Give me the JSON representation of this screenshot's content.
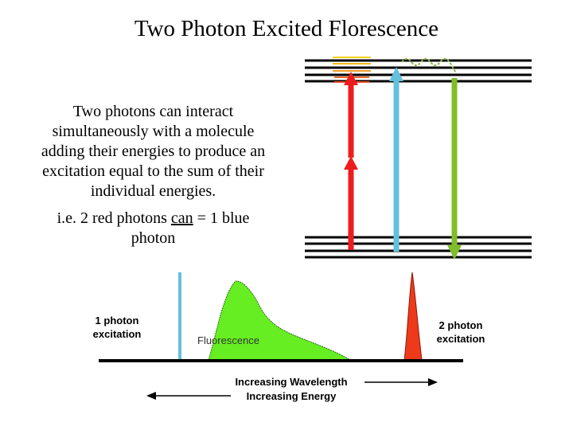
{
  "title": "Two Photon Excited Florescence",
  "body": {
    "line1": "Two photons can interact",
    "line2": "simultaneously with a molecule",
    "line3": "adding their energies to produce an",
    "line4": "excitation equal to the sum of their",
    "line5": "individual energies."
  },
  "example": {
    "prefix": "i.e. 2 red photons ",
    "underlined": "can",
    "suffix": " = 1 blue",
    "line2": "photon"
  },
  "spectrum": {
    "one_photon_line1": "1 photon",
    "one_photon_line2": "excitation",
    "fluorescence": "Fluorescence",
    "two_photon_line1": "2 photon",
    "two_photon_line2": "excitation",
    "wavelength_axis": "Increasing Wavelength",
    "energy_axis": "Increasing Energy"
  },
  "colors": {
    "red_photon": "#ee1c1c",
    "blue_photon": "#64c0dc",
    "green_emission": "#80bd2a",
    "fluorescence_fill": "#66ee22",
    "relaxation_levels": "#f5b820"
  }
}
